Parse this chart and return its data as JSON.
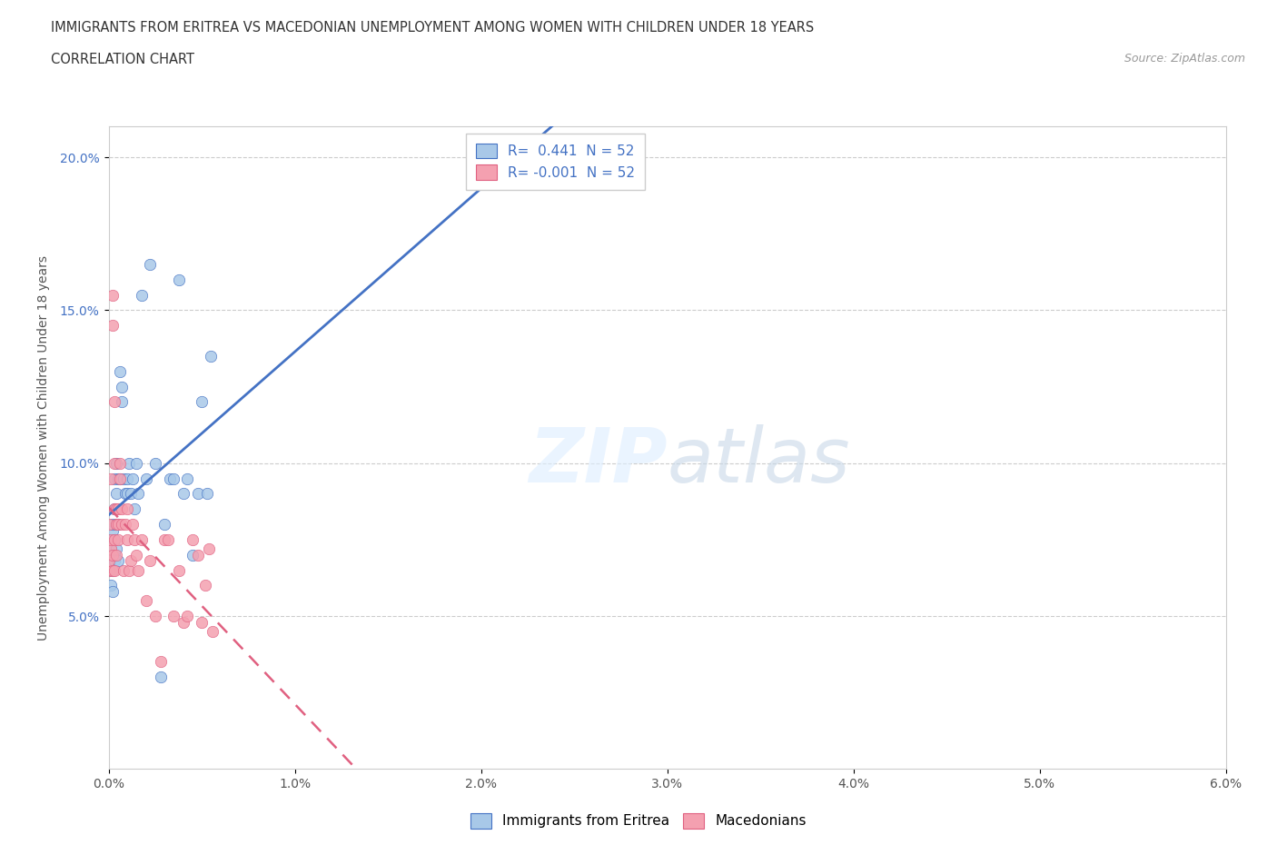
{
  "title_line1": "IMMIGRANTS FROM ERITREA VS MACEDONIAN UNEMPLOYMENT AMONG WOMEN WITH CHILDREN UNDER 18 YEARS",
  "title_line2": "CORRELATION CHART",
  "source_text": "Source: ZipAtlas.com",
  "ylabel": "Unemployment Among Women with Children Under 18 years",
  "xlim": [
    0.0,
    0.06
  ],
  "ylim": [
    0.0,
    0.21
  ],
  "xticks": [
    0.0,
    0.01,
    0.02,
    0.03,
    0.04,
    0.05,
    0.06
  ],
  "yticks": [
    0.05,
    0.1,
    0.15,
    0.2
  ],
  "color_eritrea": "#A8C8E8",
  "color_macedonian": "#F4A0B0",
  "color_line_eritrea": "#4472C4",
  "color_line_macedonian": "#E06080",
  "eritrea_x": [
    0.0,
    0.0,
    0.0,
    0.0001,
    0.0001,
    0.0001,
    0.0002,
    0.0002,
    0.0002,
    0.0002,
    0.0003,
    0.0003,
    0.0003,
    0.0003,
    0.0003,
    0.0004,
    0.0004,
    0.0004,
    0.0004,
    0.0005,
    0.0005,
    0.0005,
    0.0006,
    0.0006,
    0.0007,
    0.0007,
    0.0008,
    0.0009,
    0.001,
    0.001,
    0.0011,
    0.0012,
    0.0013,
    0.0014,
    0.0015,
    0.0016,
    0.0018,
    0.002,
    0.0022,
    0.0025,
    0.0028,
    0.003,
    0.0033,
    0.0035,
    0.0038,
    0.004,
    0.0042,
    0.0045,
    0.0048,
    0.005,
    0.0053,
    0.0055
  ],
  "eritrea_y": [
    0.075,
    0.07,
    0.065,
    0.072,
    0.068,
    0.06,
    0.078,
    0.08,
    0.065,
    0.058,
    0.085,
    0.075,
    0.07,
    0.095,
    0.068,
    0.09,
    0.1,
    0.08,
    0.072,
    0.095,
    0.08,
    0.068,
    0.13,
    0.095,
    0.125,
    0.12,
    0.095,
    0.09,
    0.095,
    0.09,
    0.1,
    0.09,
    0.095,
    0.085,
    0.1,
    0.09,
    0.155,
    0.095,
    0.165,
    0.1,
    0.03,
    0.08,
    0.095,
    0.095,
    0.16,
    0.09,
    0.095,
    0.07,
    0.09,
    0.12,
    0.09,
    0.135
  ],
  "macedonian_x": [
    0.0,
    0.0,
    0.0,
    0.0001,
    0.0001,
    0.0001,
    0.0002,
    0.0002,
    0.0002,
    0.0002,
    0.0003,
    0.0003,
    0.0003,
    0.0003,
    0.0003,
    0.0004,
    0.0004,
    0.0004,
    0.0005,
    0.0005,
    0.0005,
    0.0006,
    0.0006,
    0.0007,
    0.0007,
    0.0008,
    0.0009,
    0.001,
    0.001,
    0.0011,
    0.0012,
    0.0013,
    0.0014,
    0.0015,
    0.0016,
    0.0018,
    0.002,
    0.0022,
    0.0025,
    0.0028,
    0.003,
    0.0032,
    0.0035,
    0.0038,
    0.004,
    0.0042,
    0.0045,
    0.0048,
    0.005,
    0.0052,
    0.0054,
    0.0056
  ],
  "macedonian_y": [
    0.08,
    0.065,
    0.068,
    0.095,
    0.072,
    0.075,
    0.155,
    0.145,
    0.07,
    0.065,
    0.12,
    0.1,
    0.085,
    0.075,
    0.065,
    0.085,
    0.08,
    0.07,
    0.085,
    0.08,
    0.075,
    0.1,
    0.095,
    0.085,
    0.08,
    0.065,
    0.08,
    0.085,
    0.075,
    0.065,
    0.068,
    0.08,
    0.075,
    0.07,
    0.065,
    0.075,
    0.055,
    0.068,
    0.05,
    0.035,
    0.075,
    0.075,
    0.05,
    0.065,
    0.048,
    0.05,
    0.075,
    0.07,
    0.048,
    0.06,
    0.072,
    0.045
  ]
}
